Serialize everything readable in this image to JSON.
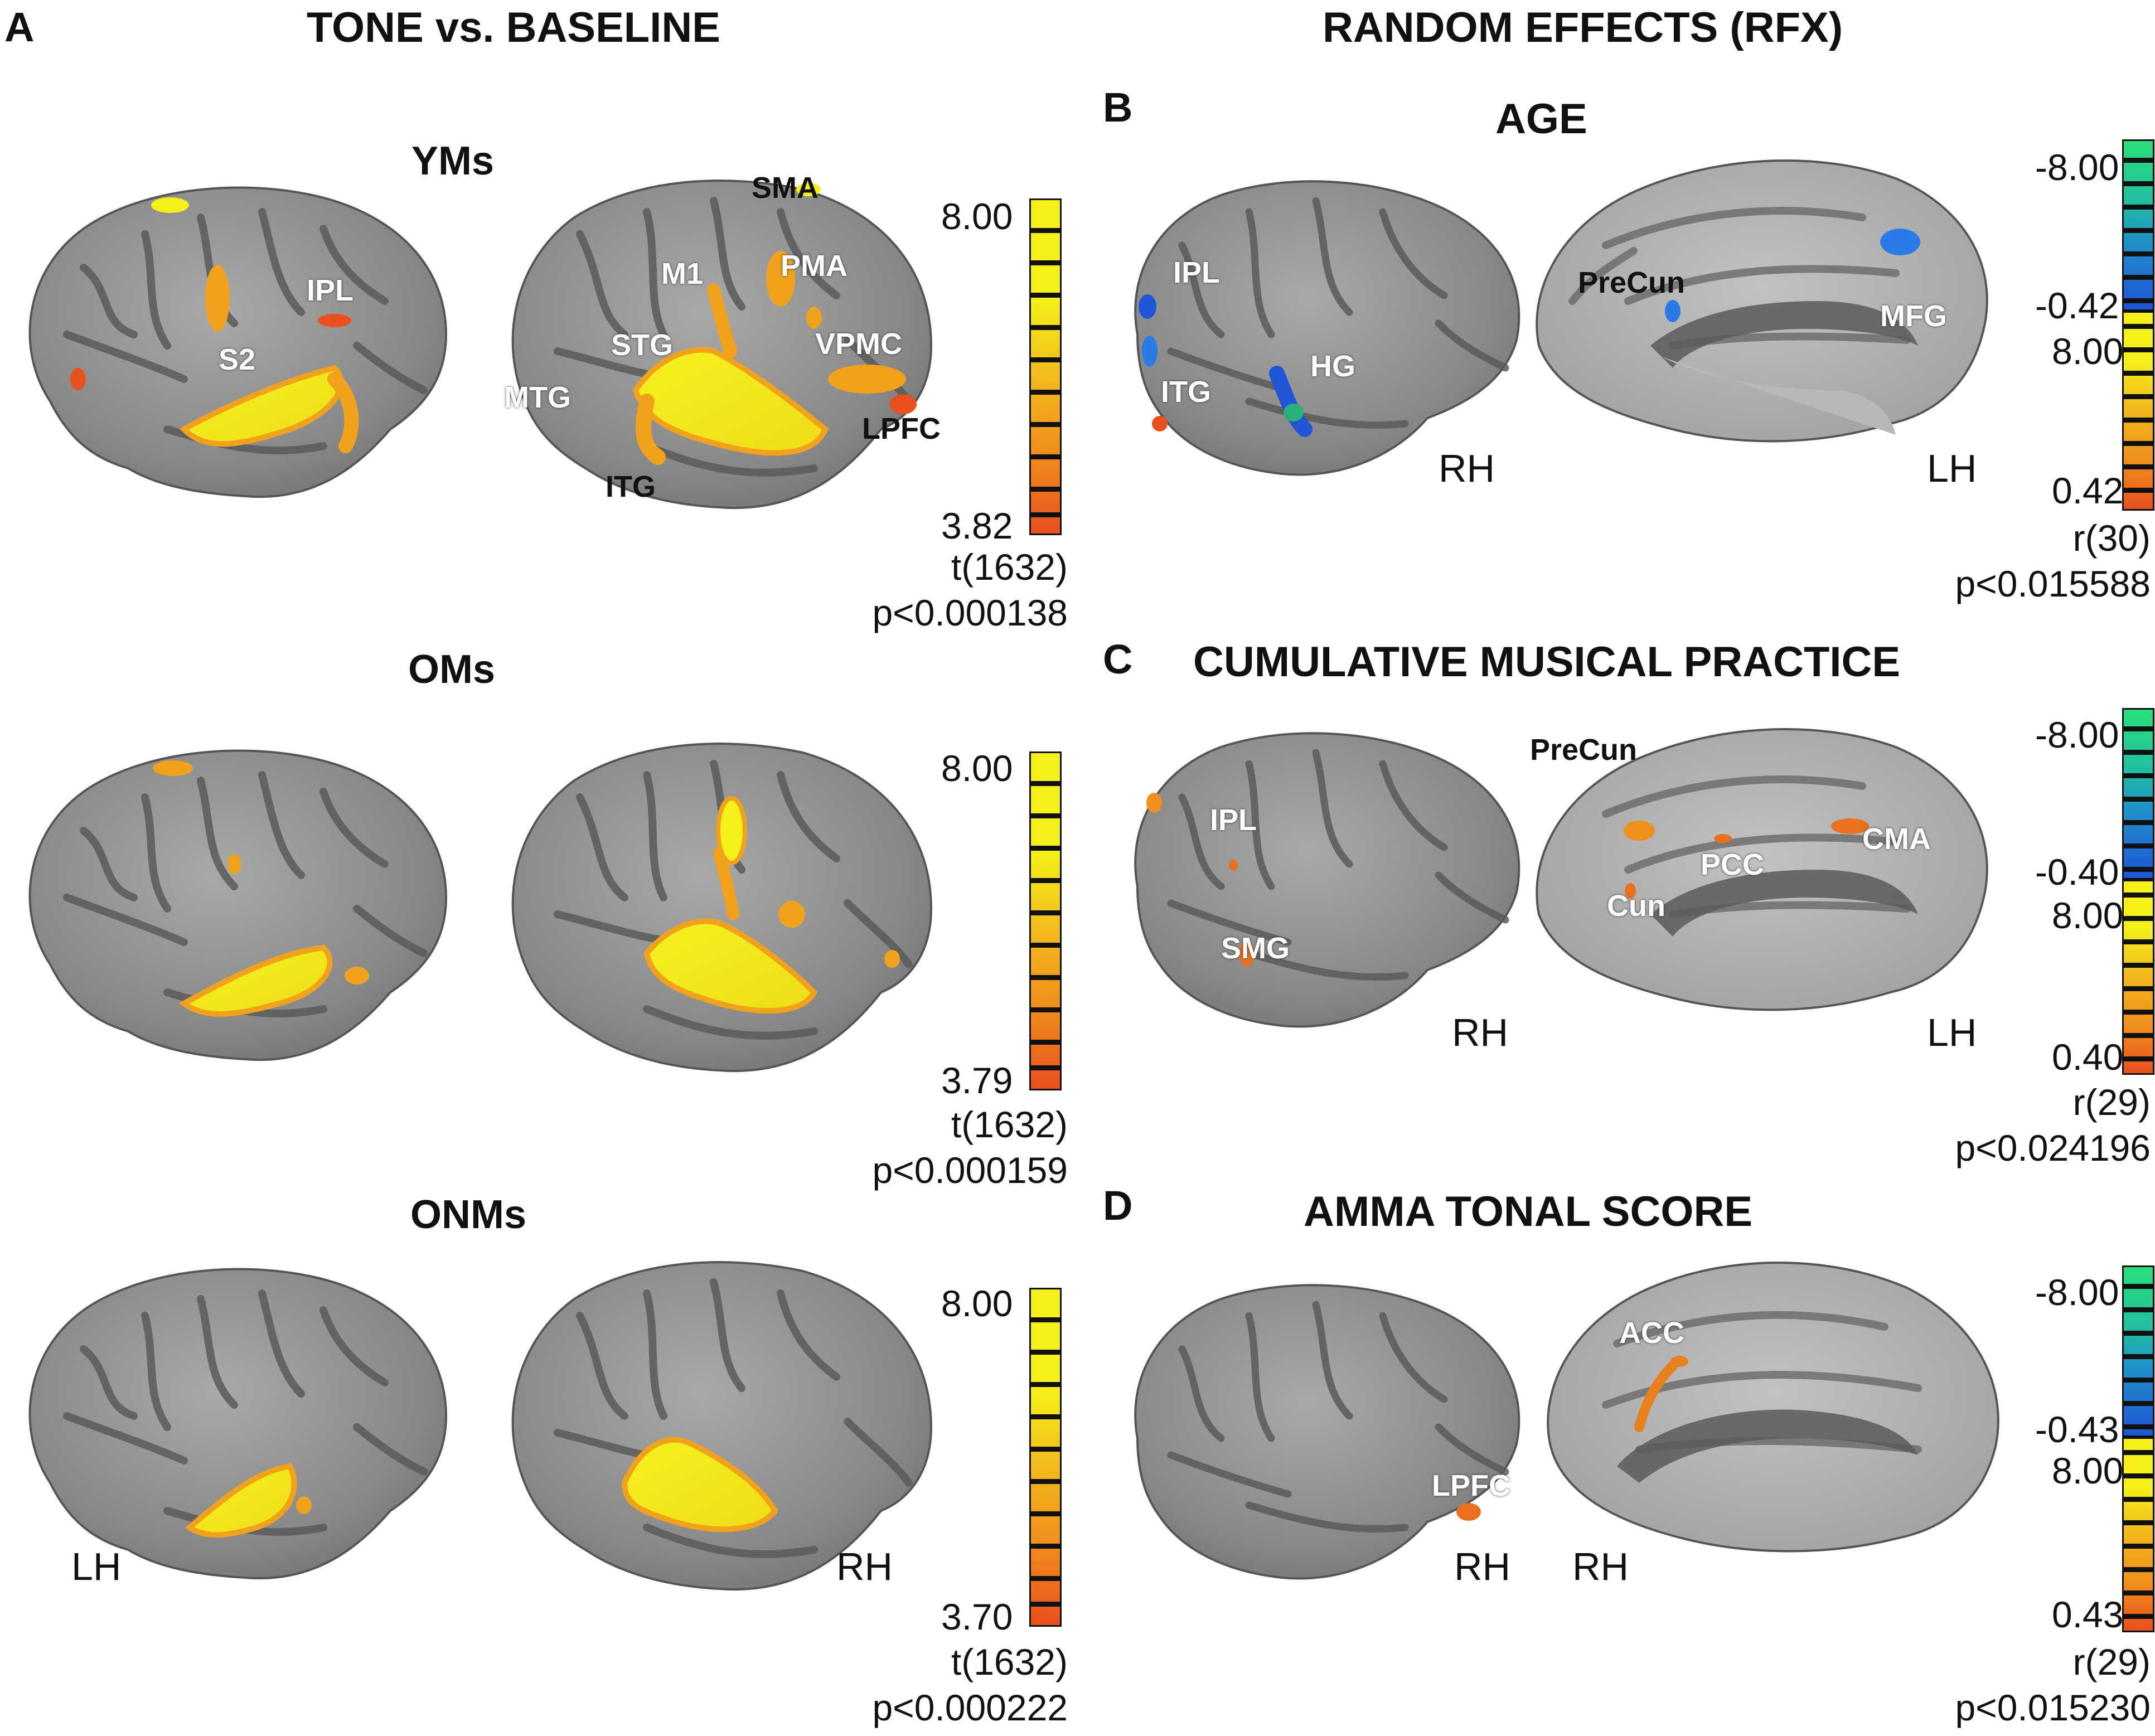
{
  "panels": {
    "A": {
      "letter": "A",
      "title": "TONE vs. BASELINE",
      "rows": [
        {
          "group": "YMs",
          "scale_max": "8.00",
          "scale_min": "3.82",
          "stat": "t(1632)",
          "p": "p<0.000138",
          "labels": {
            "S2": "S2",
            "IPL": "IPL",
            "SMA": "SMA",
            "M1": "M1",
            "PMA": "PMA",
            "STG": "STG",
            "VPMC": "VPMC",
            "MTG": "MTG",
            "LPFC": "LPFC",
            "ITG": "ITG"
          }
        },
        {
          "group": "OMs",
          "scale_max": "8.00",
          "scale_min": "3.79",
          "stat": "t(1632)",
          "p": "p<0.000159"
        },
        {
          "group": "ONMs",
          "scale_max": "8.00",
          "scale_min": "3.70",
          "stat": "t(1632)",
          "p": "p<0.000222",
          "hemis": {
            "left": "LH",
            "right": "RH"
          }
        }
      ]
    },
    "rfx_title": "RANDOM EFFECTS (RFX)",
    "B": {
      "letter": "B",
      "title": "AGE",
      "neg_max": "-8.00",
      "neg_min": "-0.42",
      "pos_max": "8.00",
      "pos_min": "0.42",
      "stat": "r(30)",
      "p": "p<0.015588",
      "labels": {
        "IPL": "IPL",
        "ITG": "ITG",
        "HG": "HG",
        "PreCun": "PreCun",
        "MFG": "MFG"
      },
      "hemis": {
        "left": "RH",
        "right": "LH"
      }
    },
    "C": {
      "letter": "C",
      "title": "CUMULATIVE MUSICAL PRACTICE",
      "neg_max": "-8.00",
      "neg_min": "-0.40",
      "pos_max": "8.00",
      "pos_min": "0.40",
      "stat": "r(29)",
      "p": "p<0.024196",
      "labels": {
        "IPL": "IPL",
        "SMG": "SMG",
        "PreCun": "PreCun",
        "PCC": "PCC",
        "CMA": "CMA",
        "Cun": "Cun"
      },
      "hemis": {
        "left": "RH",
        "right": "LH"
      }
    },
    "D": {
      "letter": "D",
      "title": "AMMA TONAL SCORE",
      "neg_max": "-8.00",
      "neg_min": "-0.43",
      "pos_max": "8.00",
      "pos_min": "0.43",
      "stat": "r(29)",
      "p": "p<0.015230",
      "labels": {
        "LPFC": "LPFC",
        "ACC": "ACC"
      },
      "hemis": {
        "left": "RH",
        "right": "RH"
      }
    }
  },
  "colors": {
    "positive_high": "#f5ef1a",
    "positive_mid": "#f0a21c",
    "positive_low": "#e8501e",
    "negative_high": "#29e07a",
    "negative_low": "#1f55d6",
    "brain_gray": "#8d8d8d",
    "sulcus_dark": "#5b5b5b"
  }
}
